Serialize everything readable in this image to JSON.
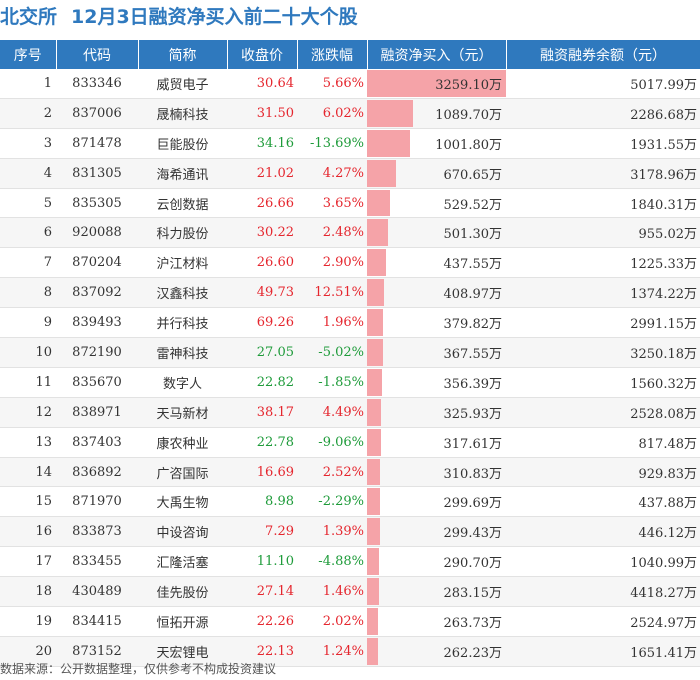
{
  "header": {
    "exchange": "北交所",
    "title": "12月3日融资净买入前二十大个股"
  },
  "table": {
    "columns": [
      "序号",
      "代码",
      "简称",
      "收盘价",
      "涨跌幅",
      "融资净买入（元）",
      "融资融券余额（元）"
    ]
  },
  "colors": {
    "header_bg": "#2F79BE",
    "title": "#2F79BE",
    "up": "#e5262e",
    "down": "#1e9b3a",
    "bar": "#f5a3a8"
  },
  "chart_data": {
    "type": "table",
    "bar_column": "融资净买入（元）",
    "rows": [
      {
        "rank": "1",
        "code": "833346",
        "name": "威贸电子",
        "price": "30.64",
        "change": "5.66%",
        "net_buy": 3259.1,
        "net_buy_text": "3259.10万",
        "balance": "5017.99万"
      },
      {
        "rank": "2",
        "code": "837006",
        "name": "晟楠科技",
        "price": "31.50",
        "change": "6.02%",
        "net_buy": 1089.7,
        "net_buy_text": "1089.70万",
        "balance": "2286.68万"
      },
      {
        "rank": "3",
        "code": "871478",
        "name": "巨能股份",
        "price": "34.16",
        "change": "-13.69%",
        "net_buy": 1001.8,
        "net_buy_text": "1001.80万",
        "balance": "1931.55万"
      },
      {
        "rank": "4",
        "code": "831305",
        "name": "海希通讯",
        "price": "21.02",
        "change": "4.27%",
        "net_buy": 670.65,
        "net_buy_text": "670.65万",
        "balance": "3178.96万"
      },
      {
        "rank": "5",
        "code": "835305",
        "name": "云创数据",
        "price": "26.66",
        "change": "3.65%",
        "net_buy": 529.52,
        "net_buy_text": "529.52万",
        "balance": "1840.31万"
      },
      {
        "rank": "6",
        "code": "920088",
        "name": "科力股份",
        "price": "30.22",
        "change": "2.48%",
        "net_buy": 501.3,
        "net_buy_text": "501.30万",
        "balance": "955.02万"
      },
      {
        "rank": "7",
        "code": "870204",
        "name": "沪江材料",
        "price": "26.60",
        "change": "2.90%",
        "net_buy": 437.55,
        "net_buy_text": "437.55万",
        "balance": "1225.33万"
      },
      {
        "rank": "8",
        "code": "837092",
        "name": "汉鑫科技",
        "price": "49.73",
        "change": "12.51%",
        "net_buy": 408.97,
        "net_buy_text": "408.97万",
        "balance": "1374.22万"
      },
      {
        "rank": "9",
        "code": "839493",
        "name": "并行科技",
        "price": "69.26",
        "change": "1.96%",
        "net_buy": 379.82,
        "net_buy_text": "379.82万",
        "balance": "2991.15万"
      },
      {
        "rank": "10",
        "code": "872190",
        "name": "雷神科技",
        "price": "27.05",
        "change": "-5.02%",
        "net_buy": 367.55,
        "net_buy_text": "367.55万",
        "balance": "3250.18万"
      },
      {
        "rank": "11",
        "code": "835670",
        "name": "数字人",
        "price": "22.82",
        "change": "-1.85%",
        "net_buy": 356.39,
        "net_buy_text": "356.39万",
        "balance": "1560.32万"
      },
      {
        "rank": "12",
        "code": "838971",
        "name": "天马新材",
        "price": "38.17",
        "change": "4.49%",
        "net_buy": 325.93,
        "net_buy_text": "325.93万",
        "balance": "2528.08万"
      },
      {
        "rank": "13",
        "code": "837403",
        "name": "康农种业",
        "price": "22.78",
        "change": "-9.06%",
        "net_buy": 317.61,
        "net_buy_text": "317.61万",
        "balance": "817.48万"
      },
      {
        "rank": "14",
        "code": "836892",
        "name": "广咨国际",
        "price": "16.69",
        "change": "2.52%",
        "net_buy": 310.83,
        "net_buy_text": "310.83万",
        "balance": "929.83万"
      },
      {
        "rank": "15",
        "code": "871970",
        "name": "大禹生物",
        "price": "8.98",
        "change": "-2.29%",
        "net_buy": 299.69,
        "net_buy_text": "299.69万",
        "balance": "437.88万"
      },
      {
        "rank": "16",
        "code": "833873",
        "name": "中设咨询",
        "price": "7.29",
        "change": "1.39%",
        "net_buy": 299.43,
        "net_buy_text": "299.43万",
        "balance": "446.12万"
      },
      {
        "rank": "17",
        "code": "833455",
        "name": "汇隆活塞",
        "price": "11.10",
        "change": "-4.88%",
        "net_buy": 290.7,
        "net_buy_text": "290.70万",
        "balance": "1040.99万"
      },
      {
        "rank": "18",
        "code": "430489",
        "name": "佳先股份",
        "price": "27.14",
        "change": "1.46%",
        "net_buy": 283.15,
        "net_buy_text": "283.15万",
        "balance": "4418.27万"
      },
      {
        "rank": "19",
        "code": "834415",
        "name": "恒拓开源",
        "price": "22.26",
        "change": "2.02%",
        "net_buy": 263.73,
        "net_buy_text": "263.73万",
        "balance": "2524.97万"
      },
      {
        "rank": "20",
        "code": "873152",
        "name": "天宏锂电",
        "price": "22.13",
        "change": "1.24%",
        "net_buy": 262.23,
        "net_buy_text": "262.23万",
        "balance": "1651.41万"
      }
    ]
  },
  "footer": {
    "source": "数据来源：公开数据整理，仅供参考不构成投资建议"
  }
}
